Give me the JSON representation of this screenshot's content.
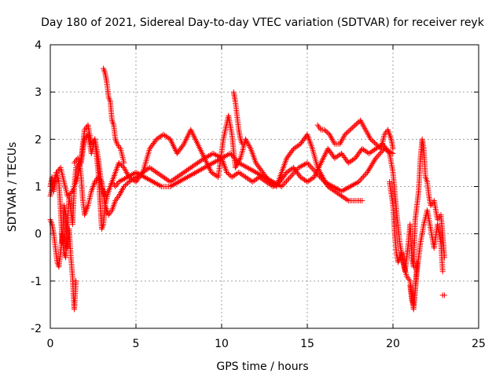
{
  "chart_data": {
    "type": "scatter",
    "title": "Day 180 of 2021, Sidereal Day-to-day VTEC variation (SDTVAR) for receiver reyk",
    "xlabel": "GPS time / hours",
    "ylabel": "SDTVAR / TECUs",
    "xlim": [
      0,
      25
    ],
    "ylim": [
      -2,
      4
    ],
    "x_ticks": [
      0,
      5,
      10,
      15,
      20,
      25
    ],
    "y_ticks": [
      -2,
      -1,
      0,
      1,
      2,
      3,
      4
    ],
    "grid": true,
    "legend": "none",
    "marker": "plus",
    "color": "#ff0000",
    "series": [
      {
        "name": "t1",
        "points": [
          [
            0,
            1.0
          ],
          [
            0.1,
            1.2
          ],
          [
            0.2,
            0.9
          ],
          [
            0.35,
            1.3
          ],
          [
            0.5,
            1.1
          ],
          [
            0.6,
            0.5
          ],
          [
            0.7,
            -0.2
          ],
          [
            0.8,
            0.6
          ],
          [
            0.9,
            0.4
          ],
          [
            1.0,
            -0.3
          ],
          [
            1.1,
            0.1
          ],
          [
            1.2,
            -0.5
          ],
          [
            1.3,
            -0.9
          ],
          [
            1.35,
            -1.3
          ],
          [
            1.4,
            -1.6
          ],
          [
            1.5,
            -1.0
          ]
        ]
      },
      {
        "name": "t2",
        "points": [
          [
            0,
            0.3
          ],
          [
            0.1,
            0.2
          ],
          [
            0.2,
            0.0
          ],
          [
            0.3,
            -0.3
          ],
          [
            0.4,
            -0.6
          ],
          [
            0.5,
            -0.7
          ],
          [
            0.6,
            -0.4
          ],
          [
            0.7,
            0.0
          ],
          [
            0.8,
            -0.4
          ],
          [
            0.9,
            -0.5
          ],
          [
            1.0,
            0.2
          ],
          [
            1.1,
            0.8
          ],
          [
            1.2,
            0.5
          ],
          [
            1.3,
            0.2
          ],
          [
            1.4,
            1.0
          ],
          [
            1.5,
            1.4
          ],
          [
            1.7,
            1.5
          ],
          [
            1.8,
            1.2
          ],
          [
            1.9,
            0.7
          ],
          [
            2.0,
            0.4
          ],
          [
            2.2,
            0.6
          ],
          [
            2.4,
            0.9
          ],
          [
            2.6,
            1.1
          ],
          [
            2.8,
            1.2
          ],
          [
            3.0,
            1.1
          ],
          [
            3.2,
            0.6
          ],
          [
            3.4,
            0.4
          ],
          [
            3.6,
            0.5
          ],
          [
            3.8,
            0.7
          ],
          [
            4.0,
            0.8
          ],
          [
            4.3,
            1.0
          ],
          [
            4.6,
            1.1
          ],
          [
            5.0,
            1.2
          ],
          [
            5.4,
            1.3
          ],
          [
            5.8,
            1.4
          ],
          [
            6.2,
            1.3
          ],
          [
            6.6,
            1.2
          ],
          [
            7.0,
            1.1
          ],
          [
            7.4,
            1.2
          ],
          [
            7.8,
            1.3
          ],
          [
            8.2,
            1.4
          ],
          [
            8.6,
            1.5
          ],
          [
            9.0,
            1.6
          ],
          [
            9.5,
            1.7
          ],
          [
            10.0,
            1.6
          ],
          [
            10.3,
            1.3
          ],
          [
            10.6,
            1.2
          ],
          [
            11.0,
            1.3
          ],
          [
            11.4,
            1.2
          ],
          [
            11.8,
            1.1
          ],
          [
            12.2,
            1.2
          ],
          [
            12.6,
            1.1
          ],
          [
            13.0,
            1.0
          ],
          [
            13.4,
            1.1
          ],
          [
            13.8,
            1.3
          ],
          [
            14.2,
            1.4
          ],
          [
            14.6,
            1.2
          ],
          [
            15.0,
            1.1
          ],
          [
            15.4,
            1.2
          ],
          [
            15.8,
            1.5
          ],
          [
            16.2,
            1.8
          ],
          [
            16.6,
            1.6
          ],
          [
            17.0,
            1.7
          ],
          [
            17.4,
            1.5
          ],
          [
            17.8,
            1.6
          ],
          [
            18.2,
            1.8
          ],
          [
            18.6,
            1.7
          ],
          [
            19.0,
            1.8
          ],
          [
            19.4,
            1.9
          ],
          [
            19.8,
            1.7
          ],
          [
            20.0,
            1.3
          ],
          [
            20.2,
            0.5
          ],
          [
            20.4,
            -0.2
          ],
          [
            20.6,
            -0.6
          ],
          [
            20.8,
            -0.9
          ],
          [
            21.0,
            -1.0
          ],
          [
            21.1,
            -1.3
          ],
          [
            21.2,
            -1.6
          ],
          [
            21.4,
            -0.8
          ],
          [
            21.6,
            -0.2
          ],
          [
            21.8,
            0.2
          ],
          [
            22.0,
            0.5
          ],
          [
            22.2,
            0.1
          ],
          [
            22.4,
            -0.3
          ],
          [
            22.6,
            0.2
          ],
          [
            22.8,
            -0.2
          ],
          [
            22.9,
            -0.8
          ]
        ]
      },
      {
        "name": "t3",
        "points": [
          [
            0,
            0.8
          ],
          [
            0.2,
            1.1
          ],
          [
            0.4,
            1.3
          ],
          [
            0.6,
            1.4
          ],
          [
            0.8,
            1.1
          ],
          [
            1.0,
            0.8
          ],
          [
            1.3,
            0.9
          ],
          [
            1.6,
            1.2
          ],
          [
            1.8,
            1.6
          ],
          [
            2.0,
            2.2
          ],
          [
            2.2,
            2.3
          ],
          [
            2.4,
            1.9
          ],
          [
            2.6,
            2.0
          ],
          [
            2.8,
            1.6
          ],
          [
            3.0,
            1.0
          ],
          [
            3.2,
            0.8
          ],
          [
            3.4,
            0.9
          ],
          [
            3.6,
            1.1
          ],
          [
            3.8,
            1.3
          ],
          [
            4.0,
            1.5
          ],
          [
            4.3,
            1.4
          ],
          [
            4.6,
            1.2
          ],
          [
            5.0,
            1.1
          ],
          [
            5.4,
            1.3
          ],
          [
            5.8,
            1.8
          ],
          [
            6.2,
            2.0
          ],
          [
            6.6,
            2.1
          ],
          [
            7.0,
            2.0
          ],
          [
            7.4,
            1.7
          ],
          [
            7.8,
            1.9
          ],
          [
            8.2,
            2.2
          ],
          [
            8.6,
            1.9
          ],
          [
            9.0,
            1.6
          ],
          [
            9.4,
            1.3
          ],
          [
            9.8,
            1.2
          ],
          [
            10.1,
            2.0
          ],
          [
            10.4,
            2.5
          ],
          [
            10.6,
            2.1
          ],
          [
            10.8,
            1.4
          ],
          [
            11.1,
            1.6
          ],
          [
            11.4,
            2.0
          ],
          [
            11.7,
            1.8
          ],
          [
            12.0,
            1.5
          ],
          [
            12.4,
            1.3
          ],
          [
            12.8,
            1.1
          ],
          [
            13.2,
            1.0
          ],
          [
            13.5,
            1.3
          ],
          [
            13.8,
            1.6
          ],
          [
            14.2,
            1.8
          ],
          [
            14.6,
            1.9
          ],
          [
            15.0,
            2.1
          ],
          [
            15.3,
            1.8
          ],
          [
            15.6,
            1.4
          ],
          [
            15.9,
            1.2
          ],
          [
            16.2,
            1.0
          ],
          [
            16.6,
            0.9
          ],
          [
            17.0,
            0.8
          ],
          [
            17.4,
            0.7
          ],
          [
            17.8,
            0.7
          ],
          [
            18.2,
            0.7
          ]
        ]
      },
      {
        "name": "t4",
        "points": [
          [
            1.4,
            1.5
          ],
          [
            1.6,
            1.6
          ],
          [
            1.8,
            1.5
          ],
          [
            2.0,
            2.0
          ],
          [
            2.2,
            2.1
          ],
          [
            2.4,
            1.7
          ],
          [
            2.6,
            2.0
          ],
          [
            2.8,
            1.3
          ],
          [
            3.0,
            0.1
          ],
          [
            3.1,
            0.2
          ],
          [
            3.2,
            0.6
          ],
          [
            3.4,
            0.9
          ],
          [
            3.6,
            1.1
          ],
          [
            3.8,
            1.0
          ],
          [
            4.0,
            1.1
          ],
          [
            4.5,
            1.2
          ],
          [
            5.0,
            1.3
          ],
          [
            5.5,
            1.2
          ],
          [
            6.0,
            1.1
          ],
          [
            6.5,
            1.0
          ],
          [
            7.0,
            1.0
          ],
          [
            7.5,
            1.1
          ],
          [
            8.0,
            1.2
          ],
          [
            8.5,
            1.3
          ],
          [
            9.0,
            1.4
          ],
          [
            9.5,
            1.5
          ],
          [
            10.0,
            1.6
          ],
          [
            10.5,
            1.7
          ],
          [
            11.0,
            1.5
          ],
          [
            11.5,
            1.4
          ],
          [
            12.0,
            1.3
          ],
          [
            12.5,
            1.2
          ],
          [
            13.0,
            1.1
          ],
          [
            13.5,
            1.0
          ],
          [
            14.0,
            1.2
          ],
          [
            14.5,
            1.4
          ],
          [
            15.0,
            1.5
          ],
          [
            15.5,
            1.3
          ],
          [
            16.0,
            1.1
          ],
          [
            16.5,
            1.0
          ],
          [
            17.0,
            0.9
          ],
          [
            17.5,
            1.0
          ],
          [
            18.0,
            1.1
          ],
          [
            18.5,
            1.3
          ],
          [
            19.0,
            1.6
          ],
          [
            19.5,
            1.8
          ],
          [
            20.0,
            1.7
          ]
        ]
      },
      {
        "name": "t5",
        "points": [
          [
            3.1,
            3.5
          ],
          [
            3.2,
            3.4
          ],
          [
            3.3,
            3.2
          ],
          [
            3.4,
            2.9
          ],
          [
            3.5,
            2.8
          ],
          [
            3.6,
            2.4
          ],
          [
            3.7,
            2.3
          ],
          [
            3.8,
            2.0
          ],
          [
            3.9,
            1.9
          ],
          [
            4.1,
            1.8
          ],
          [
            4.3,
            1.5
          ]
        ]
      },
      {
        "name": "t6",
        "points": [
          [
            10.7,
            3.0
          ],
          [
            10.8,
            2.8
          ],
          [
            10.9,
            2.5
          ],
          [
            11.0,
            2.2
          ],
          [
            11.1,
            2.0
          ],
          [
            11.2,
            1.9
          ]
        ]
      },
      {
        "name": "t7",
        "points": [
          [
            15.6,
            2.3
          ],
          [
            15.8,
            2.2
          ],
          [
            16.0,
            2.2
          ],
          [
            16.3,
            2.1
          ],
          [
            16.6,
            1.9
          ],
          [
            16.9,
            1.9
          ],
          [
            17.2,
            2.1
          ],
          [
            17.5,
            2.2
          ],
          [
            17.8,
            2.3
          ],
          [
            18.1,
            2.4
          ],
          [
            18.4,
            2.2
          ],
          [
            18.7,
            2.0
          ],
          [
            19.0,
            1.9
          ],
          [
            19.3,
            1.8
          ],
          [
            19.5,
            2.1
          ],
          [
            19.7,
            2.2
          ],
          [
            19.9,
            2.0
          ],
          [
            20.0,
            1.8
          ]
        ]
      },
      {
        "name": "t8",
        "points": [
          [
            19.8,
            1.1
          ],
          [
            20.0,
            0.6
          ],
          [
            20.1,
            0.0
          ],
          [
            20.2,
            -0.4
          ],
          [
            20.3,
            -0.6
          ],
          [
            20.5,
            -0.4
          ],
          [
            20.7,
            -0.8
          ],
          [
            20.9,
            -0.2
          ],
          [
            21.0,
            0.2
          ],
          [
            21.1,
            -0.5
          ],
          [
            21.2,
            -0.7
          ],
          [
            21.3,
            0.3
          ],
          [
            21.5,
            0.9
          ],
          [
            21.6,
            1.6
          ],
          [
            21.7,
            2.0
          ],
          [
            21.8,
            1.8
          ],
          [
            21.9,
            1.2
          ],
          [
            22.0,
            1.1
          ],
          [
            22.1,
            0.8
          ],
          [
            22.2,
            0.6
          ],
          [
            22.4,
            0.7
          ],
          [
            22.6,
            0.3
          ],
          [
            22.8,
            0.4
          ],
          [
            22.9,
            0.0
          ],
          [
            23.0,
            -0.5
          ]
        ]
      },
      {
        "name": "t9",
        "points": [
          [
            21.0,
            -1.1
          ],
          [
            21.1,
            -1.4
          ],
          [
            21.2,
            -1.5
          ],
          [
            21.3,
            -1.2
          ],
          [
            21.4,
            -0.6
          ]
        ]
      },
      {
        "name": "t10",
        "points": [
          [
            22.9,
            -1.3
          ],
          [
            23.0,
            -1.3
          ]
        ]
      }
    ]
  }
}
